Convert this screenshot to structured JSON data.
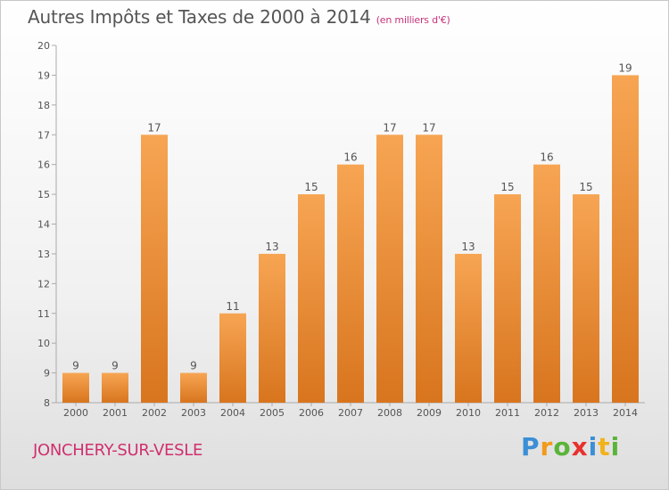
{
  "header": {
    "title": "Autres Impôts et Taxes de 2000 à 2014",
    "subtitle": "(en milliers d'€)"
  },
  "footer": {
    "city": "JONCHERY-SUR-VESLE",
    "logo": "Proxiti"
  },
  "colors": {
    "bar_top": "#f7a553",
    "bar_bottom": "#d8751e",
    "value_label": "#555555",
    "title": "#555555",
    "subtitle": "#c8327a",
    "city": "#d0306e"
  },
  "chart_data": {
    "type": "bar",
    "title": "Autres Impôts et Taxes de 2000 à 2014",
    "subtitle": "(en milliers d'€)",
    "xlabel": "",
    "ylabel": "",
    "categories": [
      "2000",
      "2001",
      "2002",
      "2003",
      "2004",
      "2005",
      "2006",
      "2007",
      "2008",
      "2009",
      "2010",
      "2011",
      "2012",
      "2013",
      "2014"
    ],
    "values": [
      9,
      9,
      17,
      9,
      11,
      13,
      15,
      16,
      17,
      17,
      13,
      15,
      16,
      15,
      19
    ],
    "ylim": [
      8,
      20
    ],
    "yticks": [
      8,
      9,
      10,
      11,
      12,
      13,
      14,
      15,
      16,
      17,
      18,
      19,
      20
    ],
    "grid": false,
    "data_labels": true,
    "legend": "none"
  }
}
